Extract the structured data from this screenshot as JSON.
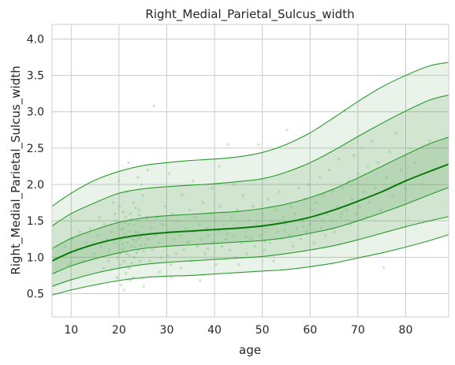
{
  "chart_data": {
    "type": "line",
    "title": "Right_Medial_Parietal_Sulcus_width",
    "xlabel": "age",
    "ylabel": "Right_Medial_Parietal_Sulcus_width",
    "xlim": [
      6,
      89
    ],
    "ylim": [
      0.18,
      4.2
    ],
    "x_ticks": [
      10,
      20,
      30,
      40,
      50,
      60,
      70,
      80
    ],
    "y_ticks": [
      0.5,
      1.0,
      1.5,
      2.0,
      2.5,
      3.0,
      3.5,
      4.0
    ],
    "x_tick_labels": [
      "10",
      "20",
      "30",
      "40",
      "50",
      "60",
      "70",
      "80"
    ],
    "y_tick_labels": [
      "0.5",
      "1.0",
      "1.5",
      "2.0",
      "2.5",
      "3.0",
      "3.5",
      "4.0"
    ],
    "grid": true,
    "colors": {
      "line": "#2a9a2a",
      "median": "#0a7a0a",
      "fill": "#2e8b2e",
      "points": "#7fbf7f"
    },
    "x": [
      6,
      10,
      15,
      20,
      25,
      30,
      35,
      40,
      45,
      50,
      55,
      60,
      65,
      70,
      75,
      80,
      85,
      89
    ],
    "series": [
      {
        "values": [
          0.48,
          0.55,
          0.62,
          0.68,
          0.72,
          0.74,
          0.75,
          0.77,
          0.79,
          0.81,
          0.83,
          0.87,
          0.92,
          0.99,
          1.06,
          1.14,
          1.23,
          1.31
        ]
      },
      {
        "values": [
          0.6,
          0.69,
          0.78,
          0.85,
          0.9,
          0.93,
          0.95,
          0.97,
          0.99,
          1.01,
          1.05,
          1.1,
          1.16,
          1.24,
          1.33,
          1.42,
          1.5,
          1.56
        ]
      },
      {
        "values": [
          0.77,
          0.88,
          0.98,
          1.06,
          1.12,
          1.15,
          1.17,
          1.19,
          1.21,
          1.23,
          1.27,
          1.33,
          1.4,
          1.5,
          1.61,
          1.73,
          1.86,
          1.96
        ]
      },
      {
        "values": [
          0.95,
          1.07,
          1.18,
          1.26,
          1.31,
          1.34,
          1.36,
          1.38,
          1.4,
          1.43,
          1.48,
          1.55,
          1.65,
          1.77,
          1.9,
          2.05,
          2.18,
          2.28
        ]
      },
      {
        "values": [
          1.12,
          1.26,
          1.38,
          1.48,
          1.54,
          1.57,
          1.59,
          1.61,
          1.63,
          1.67,
          1.73,
          1.82,
          1.94,
          2.09,
          2.25,
          2.41,
          2.56,
          2.65
        ]
      },
      {
        "values": [
          1.43,
          1.6,
          1.75,
          1.88,
          1.94,
          1.97,
          1.99,
          2.01,
          2.04,
          2.08,
          2.17,
          2.3,
          2.47,
          2.66,
          2.84,
          3.01,
          3.16,
          3.23
        ]
      },
      {
        "values": [
          1.7,
          1.88,
          2.06,
          2.18,
          2.26,
          2.3,
          2.33,
          2.35,
          2.38,
          2.44,
          2.55,
          2.71,
          2.92,
          3.14,
          3.34,
          3.5,
          3.63,
          3.68
        ]
      }
    ],
    "points": [
      [
        20.2,
        0.9
      ],
      [
        20.4,
        1.25
      ],
      [
        20.6,
        1.1
      ],
      [
        20.8,
        1.4
      ],
      [
        21,
        0.95
      ],
      [
        21.2,
        1.32
      ],
      [
        21.4,
        1.55
      ],
      [
        21.6,
        1.05
      ],
      [
        21.8,
        1.2
      ],
      [
        22,
        1.45
      ],
      [
        22.2,
        0.85
      ],
      [
        22.4,
        1.6
      ],
      [
        22.6,
        1.15
      ],
      [
        22.8,
        1.3
      ],
      [
        23,
        1.75
      ],
      [
        23.2,
        1.0
      ],
      [
        23.4,
        1.35
      ],
      [
        23.6,
        1.22
      ],
      [
        23.8,
        1.5
      ],
      [
        24,
        1.1
      ],
      [
        24.2,
        1.65
      ],
      [
        24.4,
        0.95
      ],
      [
        24.6,
        1.28
      ],
      [
        24.8,
        1.42
      ],
      [
        25,
        1.85
      ],
      [
        25.2,
        1.08
      ],
      [
        25.4,
        1.3
      ],
      [
        25.6,
        1.18
      ],
      [
        25.8,
        1.55
      ],
      [
        26,
        1.25
      ],
      [
        20.1,
        1.7
      ],
      [
        20.3,
        1.05
      ],
      [
        20.5,
        1.38
      ],
      [
        20.7,
        1.18
      ],
      [
        20.9,
        1.62
      ],
      [
        21.1,
        1.12
      ],
      [
        21.3,
        1.48
      ],
      [
        21.5,
        0.78
      ],
      [
        21.7,
        1.9
      ],
      [
        21.9,
        1.28
      ],
      [
        22.1,
        1.02
      ],
      [
        22.3,
        1.36
      ],
      [
        22.5,
        1.52
      ],
      [
        22.7,
        0.92
      ],
      [
        22.9,
        1.24
      ],
      [
        23.1,
        1.44
      ],
      [
        23.3,
        1.14
      ],
      [
        23.5,
        1.68
      ],
      [
        23.7,
        1.06
      ],
      [
        23.9,
        1.34
      ],
      [
        24.1,
        1.26
      ],
      [
        24.3,
        1.58
      ],
      [
        24.5,
        1.16
      ],
      [
        24.7,
        2.0
      ],
      [
        24.9,
        1.32
      ],
      [
        19.0,
        1.2
      ],
      [
        19.4,
        1.5
      ],
      [
        19.8,
        1.0
      ],
      [
        18.5,
        1.35
      ],
      [
        18.0,
        1.1
      ],
      [
        17.5,
        1.25
      ],
      [
        17.0,
        1.45
      ],
      [
        16.2,
        1.15
      ],
      [
        15.5,
        1.3
      ],
      [
        14.8,
        1.05
      ],
      [
        14.0,
        1.4
      ],
      [
        13.2,
        1.2
      ],
      [
        12.5,
        0.95
      ],
      [
        11.8,
        1.35
      ],
      [
        11.0,
        1.1
      ],
      [
        10.2,
        1.25
      ],
      [
        9.5,
        0.9
      ],
      [
        8.7,
        1.15
      ],
      [
        16.8,
        0.85
      ],
      [
        18.8,
        1.75
      ],
      [
        19.6,
        0.72
      ],
      [
        20.0,
        2.05
      ],
      [
        19.2,
        1.6
      ],
      [
        17.8,
        0.95
      ],
      [
        15.9,
        1.55
      ],
      [
        22.0,
        2.3
      ],
      [
        24.0,
        2.1
      ],
      [
        26.0,
        2.2
      ],
      [
        23.0,
        0.72
      ],
      [
        21.0,
        0.55
      ],
      [
        20.5,
        0.62
      ],
      [
        26.5,
        0.95
      ],
      [
        26.8,
        1.4
      ],
      [
        27.0,
        1.1
      ],
      [
        27.3,
        3.08
      ],
      [
        27.6,
        1.3
      ],
      [
        28.0,
        1.55
      ],
      [
        28.4,
        1.2
      ],
      [
        28.8,
        1.0
      ],
      [
        29.2,
        1.45
      ],
      [
        29.6,
        1.7
      ],
      [
        30.0,
        1.15
      ],
      [
        30.4,
        1.35
      ],
      [
        30.8,
        0.9
      ],
      [
        31.2,
        1.6
      ],
      [
        31.6,
        1.25
      ],
      [
        32.0,
        1.05
      ],
      [
        32.4,
        1.5
      ],
      [
        32.8,
        1.3
      ],
      [
        33.2,
        1.85
      ],
      [
        33.6,
        1.1
      ],
      [
        34.0,
        1.4
      ],
      [
        34.4,
        1.2
      ],
      [
        34.8,
        1.65
      ],
      [
        35.2,
        0.95
      ],
      [
        35.6,
        1.35
      ],
      [
        36.0,
        1.55
      ],
      [
        36.4,
        1.15
      ],
      [
        36.8,
        1.45
      ],
      [
        37.2,
        1.25
      ],
      [
        37.6,
        1.75
      ],
      [
        38.0,
        1.05
      ],
      [
        38.4,
        1.4
      ],
      [
        38.8,
        1.3
      ],
      [
        39.2,
        1.6
      ],
      [
        39.6,
        1.2
      ],
      [
        40.0,
        1.5
      ],
      [
        40.4,
        0.9
      ],
      [
        40.8,
        1.35
      ],
      [
        41.2,
        1.7
      ],
      [
        41.6,
        1.15
      ],
      [
        42.0,
        1.45
      ],
      [
        42.4,
        1.25
      ],
      [
        42.8,
        2.55
      ],
      [
        43.2,
        1.1
      ],
      [
        43.6,
        1.55
      ],
      [
        44.0,
        1.3
      ],
      [
        44.4,
        1.0
      ],
      [
        44.8,
        1.65
      ],
      [
        45.2,
        1.4
      ],
      [
        45.6,
        1.2
      ],
      [
        46.0,
        1.85
      ],
      [
        46.4,
        1.35
      ],
      [
        46.8,
        1.05
      ],
      [
        47.2,
        1.5
      ],
      [
        47.6,
        1.25
      ],
      [
        48.0,
        1.7
      ],
      [
        48.4,
        1.15
      ],
      [
        48.8,
        1.45
      ],
      [
        49.2,
        2.55
      ],
      [
        49.6,
        1.3
      ],
      [
        50.0,
        1.6
      ],
      [
        50.4,
        1.1
      ],
      [
        50.8,
        1.4
      ],
      [
        51.2,
        1.8
      ],
      [
        51.6,
        1.2
      ],
      [
        52.0,
        1.5
      ],
      [
        52.4,
        0.95
      ],
      [
        52.8,
        1.65
      ],
      [
        53.2,
        1.35
      ],
      [
        53.6,
        1.9
      ],
      [
        54.0,
        1.25
      ],
      [
        54.4,
        1.55
      ],
      [
        54.8,
        1.45
      ],
      [
        55.2,
        2.75
      ],
      [
        55.6,
        1.3
      ],
      [
        56.0,
        1.7
      ],
      [
        56.4,
        1.15
      ],
      [
        56.8,
        1.6
      ],
      [
        57.2,
        1.4
      ],
      [
        57.6,
        1.95
      ],
      [
        58.0,
        1.25
      ],
      [
        58.4,
        1.5
      ],
      [
        58.8,
        1.8
      ],
      [
        59.2,
        1.35
      ],
      [
        59.6,
        2.0
      ],
      [
        60.0,
        1.45
      ],
      [
        60.4,
        1.65
      ],
      [
        60.8,
        1.2
      ],
      [
        61.2,
        1.75
      ],
      [
        61.6,
        1.55
      ],
      [
        62.0,
        2.1
      ],
      [
        62.4,
        1.4
      ],
      [
        62.8,
        1.85
      ],
      [
        63.2,
        1.3
      ],
      [
        63.6,
        1.6
      ],
      [
        64.0,
        2.2
      ],
      [
        64.4,
        1.5
      ],
      [
        64.8,
        1.9
      ],
      [
        65.2,
        1.35
      ],
      [
        65.6,
        1.7
      ],
      [
        66.0,
        2.35
      ],
      [
        66.4,
        1.55
      ],
      [
        66.8,
        1.95
      ],
      [
        67.2,
        3.02
      ],
      [
        67.6,
        1.65
      ],
      [
        68.0,
        2.05
      ],
      [
        68.4,
        1.45
      ],
      [
        68.8,
        1.8
      ],
      [
        69.2,
        2.4
      ],
      [
        69.6,
        1.6
      ],
      [
        70.0,
        2.15
      ],
      [
        70.4,
        1.7
      ],
      [
        70.8,
        2.5
      ],
      [
        71.2,
        1.9
      ],
      [
        71.6,
        1.55
      ],
      [
        72.0,
        2.25
      ],
      [
        72.4,
        1.75
      ],
      [
        73.0,
        2.6
      ],
      [
        73.6,
        1.95
      ],
      [
        74.2,
        2.3
      ],
      [
        74.8,
        1.65
      ],
      [
        75.4,
        0.86
      ],
      [
        76.0,
        2.1
      ],
      [
        76.6,
        2.45
      ],
      [
        77.2,
        1.85
      ],
      [
        78.0,
        2.7
      ],
      [
        79.0,
        2.2
      ],
      [
        80.0,
        1.95
      ],
      [
        81.0,
        2.5
      ],
      [
        82.0,
        2.3
      ],
      [
        83.5,
        2.0
      ],
      [
        85.0,
        2.6
      ],
      [
        31.0,
        0.72
      ],
      [
        37.0,
        0.68
      ],
      [
        28.5,
        0.8
      ],
      [
        33.0,
        0.85
      ],
      [
        45.0,
        0.9
      ],
      [
        41.0,
        2.25
      ],
      [
        35.5,
        2.05
      ],
      [
        30.5,
        2.15
      ],
      [
        39.5,
        1.95
      ],
      [
        44.0,
        2.0
      ],
      [
        25.2,
        0.6
      ],
      [
        22.4,
        0.68
      ],
      [
        30.2,
        1.02
      ],
      [
        34.6,
        1.22
      ],
      [
        38.6,
        1.12
      ],
      [
        42.6,
        1.32
      ],
      [
        46.6,
        1.28
      ],
      [
        50.6,
        1.22
      ],
      [
        54.6,
        1.38
      ],
      [
        58.6,
        1.42
      ],
      [
        62.6,
        1.5
      ],
      [
        66.6,
        1.6
      ]
    ]
  }
}
